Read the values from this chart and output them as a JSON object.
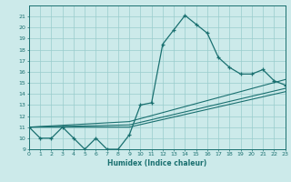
{
  "bg_color": "#cceaea",
  "line_color": "#1a7070",
  "grid_color": "#99cccc",
  "xlabel": "Humidex (Indice chaleur)",
  "ylim": [
    9,
    22
  ],
  "xlim": [
    0,
    23
  ],
  "yticks": [
    9,
    10,
    11,
    12,
    13,
    14,
    15,
    16,
    17,
    18,
    19,
    20,
    21
  ],
  "xticks": [
    0,
    1,
    2,
    3,
    4,
    5,
    6,
    7,
    8,
    9,
    10,
    11,
    12,
    13,
    14,
    15,
    16,
    17,
    18,
    19,
    20,
    21,
    22,
    23
  ],
  "series1_x": [
    0,
    1,
    2,
    3,
    4,
    5,
    6,
    7,
    8,
    9,
    10,
    11,
    12,
    13,
    14,
    15,
    16,
    17,
    18,
    19,
    20,
    21,
    22,
    23
  ],
  "series1_y": [
    11,
    10,
    10,
    11,
    10,
    9,
    10,
    9,
    9,
    10.3,
    13,
    13.2,
    18.5,
    19.8,
    21.1,
    20.3,
    19.5,
    17.3,
    16.4,
    15.8,
    15.8,
    16.2,
    15.2,
    14.8
  ],
  "series2_x": [
    0,
    9,
    23
  ],
  "series2_y": [
    11,
    11.5,
    15.3
  ],
  "series3_x": [
    0,
    9,
    23
  ],
  "series3_y": [
    11,
    11.2,
    14.5
  ],
  "series4_x": [
    0,
    9,
    23
  ],
  "series4_y": [
    11,
    11.0,
    14.2
  ]
}
